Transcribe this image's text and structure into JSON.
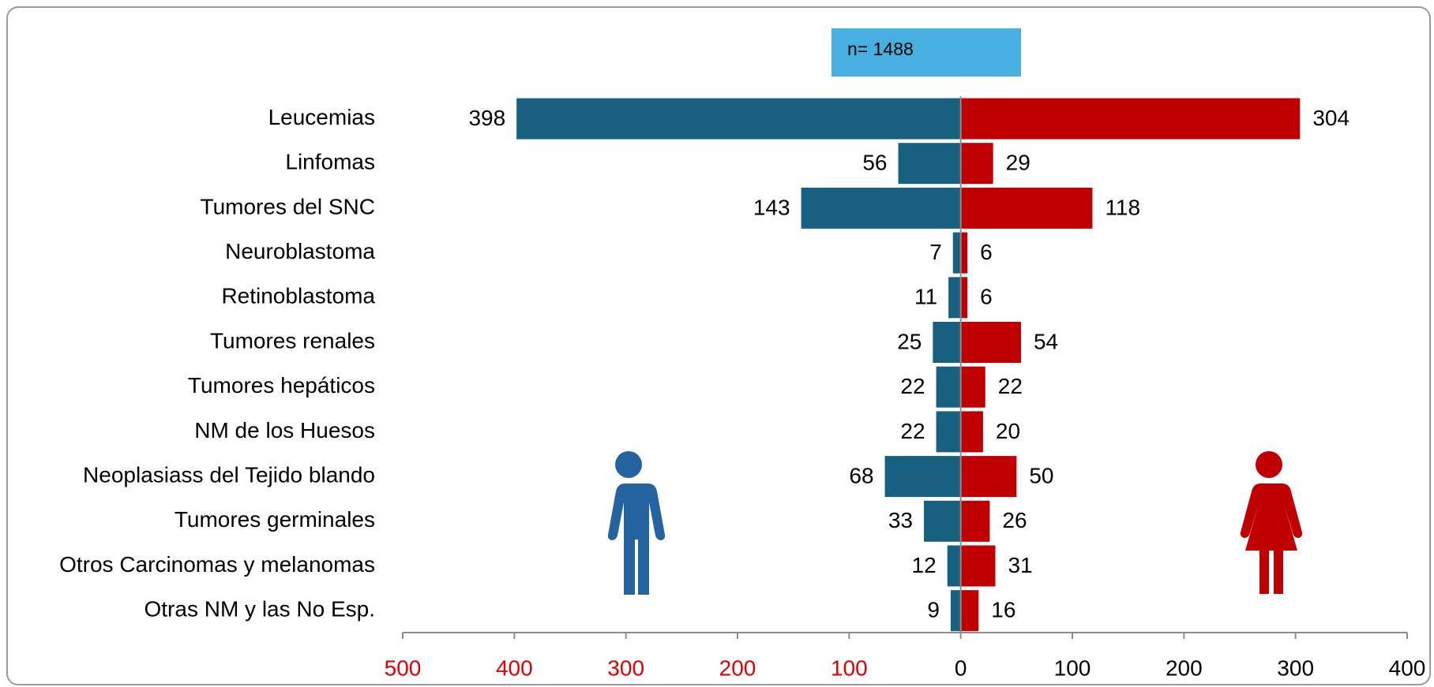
{
  "chart_data": {
    "type": "pyramid",
    "annotation": "n= 1488",
    "categories": [
      "Leucemias",
      "Linfomas",
      "Tumores del SNC",
      "Neuroblastoma",
      "Retinoblastoma",
      "Tumores renales",
      "Tumores hepáticos",
      "NM de los Huesos",
      "Neoplasiass del Tejido blando",
      "Tumores germinales",
      "Otros Carcinomas y melanomas",
      "Otras NM y las No Esp."
    ],
    "series": [
      {
        "color": "#17607f",
        "values": [
          -398,
          -56,
          -143,
          -7,
          -11,
          -25,
          -22,
          -22,
          -68,
          -33,
          -12,
          -9
        ],
        "value_labels": [
          "398",
          "56",
          "143",
          "7",
          "11",
          "25",
          "22",
          "22",
          "68",
          "33",
          "12",
          "9"
        ]
      },
      {
        "color": "#c00000",
        "values": [
          304,
          29,
          118,
          6,
          6,
          54,
          22,
          20,
          50,
          26,
          31,
          16
        ]
      }
    ],
    "xlim": [
      -500,
      400
    ],
    "xticks": [
      {
        "value": -500,
        "label": "500"
      },
      {
        "value": -400,
        "label": "400"
      },
      {
        "value": -300,
        "label": "300"
      },
      {
        "value": -200,
        "label": "200"
      },
      {
        "value": -100,
        "label": "100"
      },
      0,
      100,
      200,
      300,
      400
    ],
    "negative_tick_color": "#e00000"
  }
}
